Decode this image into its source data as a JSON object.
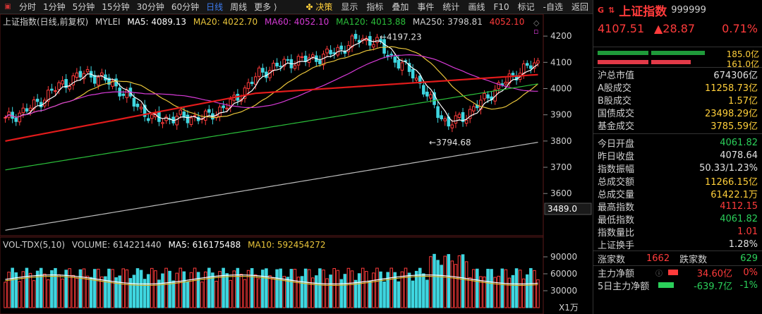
{
  "toolbar": {
    "periods": [
      "分时",
      "1分钟",
      "5分钟",
      "15分钟",
      "30分钟",
      "60分钟",
      "日线",
      "周线",
      "更多"
    ],
    "active_period": "日线",
    "tools": [
      "决策",
      "显示",
      "指标",
      "叠加",
      "事件",
      "统计",
      "画线",
      "F10",
      "标记",
      "-自选",
      "返回"
    ]
  },
  "main_legend": {
    "title": "上证指数(日线,前复权)",
    "indicator": "MYLEI",
    "ma5": "MA5: 4089.13",
    "ma20": "MA20: 4022.70",
    "ma60": "MA60: 4052.10",
    "ma120": "MA120: 4013.88",
    "ma250": "MA250: 3798.81",
    "extra": "4052.10"
  },
  "vol_legend": {
    "title": "VOL-TDX(5,10)",
    "volume": "VOLUME: 614221440",
    "ma5": "MA5: 616175488",
    "ma10": "MA10: 592454272"
  },
  "axis": {
    "price_ticks": [
      "4200",
      "4100",
      "4000",
      "3900",
      "3800",
      "3700",
      "3600"
    ],
    "cross_label": "3489.0",
    "vol_ticks": [
      "90000",
      "60000",
      "30000"
    ],
    "vol_unit": "X1万",
    "high_label": "4197.23",
    "low_label": "3794.68"
  },
  "colors": {
    "up": "#ff3b3b",
    "down": "#3fd6e0",
    "ma5": "#ffffff",
    "ma20": "#e8c43a",
    "ma60": "#d63ad6",
    "ma120": "#2bbf3a",
    "ma250": "#bbbbbb",
    "red_ma": "#e21b1b"
  },
  "quote": {
    "name": "上证指数",
    "code": "999999",
    "price": "4107.51",
    "change": "▲28.87",
    "pct": "0.71%",
    "buy_amount": "185.0亿",
    "sell_amount": "161.0亿"
  },
  "stats": [
    {
      "label": "沪总市值",
      "value": "674306亿",
      "tone": "white"
    },
    {
      "label": "A股成交",
      "value": "11258.73亿",
      "tone": ""
    },
    {
      "label": "B股成交",
      "value": "1.57亿",
      "tone": ""
    },
    {
      "label": "国债成交",
      "value": "23498.29亿",
      "tone": ""
    },
    {
      "label": "基金成交",
      "value": "3785.59亿",
      "tone": ""
    }
  ],
  "stats2": [
    {
      "label": "今日开盘",
      "value": "4061.82",
      "tone": "green"
    },
    {
      "label": "昨日收盘",
      "value": "4078.64",
      "tone": "white"
    },
    {
      "label": "指数振幅",
      "value": "50.33/1.23%",
      "tone": "white"
    },
    {
      "label": "总成交额",
      "value": "11266.15亿",
      "tone": ""
    },
    {
      "label": "总成交量",
      "value": "61422.1万",
      "tone": ""
    },
    {
      "label": "最高指数",
      "value": "4112.15",
      "tone": "red"
    },
    {
      "label": "最低指数",
      "value": "4061.82",
      "tone": "green"
    },
    {
      "label": "指数量比",
      "value": "1.01",
      "tone": "red"
    },
    {
      "label": "上证换手",
      "value": "1.28%",
      "tone": "white"
    }
  ],
  "breadth": {
    "up_label": "涨家数",
    "up": "1662",
    "down_label": "跌家数",
    "down": "629"
  },
  "flow": [
    {
      "label": "主力净额",
      "value": "34.60亿",
      "pct": "0%",
      "tone": "red"
    },
    {
      "label": "5日主力净额",
      "value": "-639.7亿",
      "pct": "-1%",
      "tone": "green"
    }
  ]
}
